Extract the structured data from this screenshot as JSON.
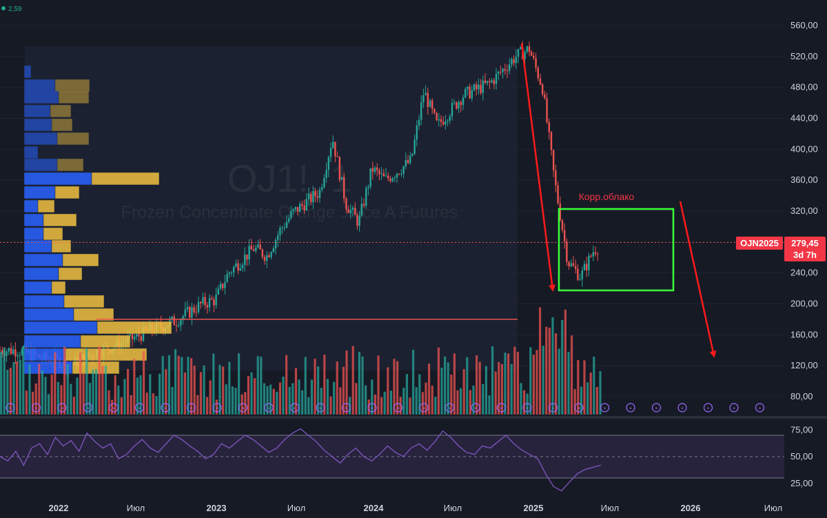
{
  "indicator_readout": "2,59",
  "watermark": {
    "symbol": "OJ1!, 1",
    "name": "Frozen Concentrate Orange Juice A Futures"
  },
  "annotation": "Корр.облако",
  "price_tag": {
    "ticker": "OJN2025",
    "price": "279,45",
    "countdown": "3d 7h"
  },
  "colors": {
    "bg": "#161a25",
    "up": "#26a69a",
    "down": "#ef5350",
    "annotation": "#f23645",
    "box": "#39ff39",
    "rsi": "#7e57c2",
    "vp_blue": "#2962ff",
    "vp_yellow": "#f0c040"
  },
  "chart_data": [
    {
      "type": "candlestick",
      "title": "Frozen Concentrate Orange Juice A Futures",
      "y_ticks": [
        "560,00",
        "520,00",
        "480,00",
        "440,00",
        "400,00",
        "360,00",
        "320,00",
        "280,00",
        "240,00",
        "200,00",
        "160,00",
        "120,00",
        "80,00"
      ],
      "ylim": [
        70,
        570
      ],
      "x_ticks": [
        "2022",
        "Июл",
        "2023",
        "Июл",
        "2024",
        "Июл",
        "2025",
        "Июл",
        "2026",
        "Июл"
      ],
      "xlim": [
        "2021-09",
        "2026-09"
      ],
      "close_series_approx": [
        [
          "2021-10",
          140
        ],
        [
          "2021-12",
          128
        ],
        [
          "2022-02",
          122
        ],
        [
          "2022-04",
          138
        ],
        [
          "2022-06",
          150
        ],
        [
          "2022-08",
          165
        ],
        [
          "2022-10",
          178
        ],
        [
          "2022-12",
          200
        ],
        [
          "2023-01",
          205
        ],
        [
          "2023-02",
          240
        ],
        [
          "2023-04",
          272
        ],
        [
          "2023-05",
          262
        ],
        [
          "2023-06",
          295
        ],
        [
          "2023-07",
          318
        ],
        [
          "2023-09",
          345
        ],
        [
          "2023-10",
          415
        ],
        [
          "2023-11",
          330
        ],
        [
          "2023-12",
          305
        ],
        [
          "2024-01",
          375
        ],
        [
          "2024-02",
          360
        ],
        [
          "2024-04",
          385
        ],
        [
          "2024-05",
          475
        ],
        [
          "2024-06",
          430
        ],
        [
          "2024-08",
          470
        ],
        [
          "2024-10",
          485
        ],
        [
          "2024-12",
          520
        ],
        [
          "2025-01",
          530
        ],
        [
          "2025-02",
          480
        ],
        [
          "2025-03",
          360
        ],
        [
          "2025-04",
          255
        ],
        [
          "2025-05",
          235
        ],
        [
          "2025-06",
          270
        ],
        [
          "2025-07",
          279.45
        ]
      ],
      "last_price": 279.45,
      "horizontal_line": 180
    },
    {
      "type": "bar",
      "title": "",
      "series": [
        {
          "name": "",
          "values": []
        }
      ]
    },
    {
      "type": "line",
      "title": "",
      "y_ticks": [
        "75,00",
        "50,00",
        "25,00"
      ],
      "ylim": [
        15,
        85
      ],
      "bands": [
        30,
        50,
        70
      ],
      "values_approx": [
        50,
        46,
        55,
        42,
        58,
        62,
        52,
        68,
        60,
        65,
        55,
        72,
        64,
        58,
        62,
        48,
        52,
        60,
        66,
        58,
        54,
        62,
        70,
        66,
        60,
        55,
        48,
        52,
        62,
        58,
        64,
        70,
        66,
        60,
        54,
        58,
        66,
        72,
        76,
        70,
        64,
        56,
        50,
        44,
        52,
        58,
        50,
        46,
        52,
        60,
        54,
        50,
        58,
        62,
        56,
        64,
        74,
        68,
        60,
        54,
        52,
        60,
        58,
        64,
        70,
        62,
        56,
        52,
        48,
        34,
        22,
        18,
        26,
        34,
        38,
        40,
        42
      ]
    }
  ]
}
